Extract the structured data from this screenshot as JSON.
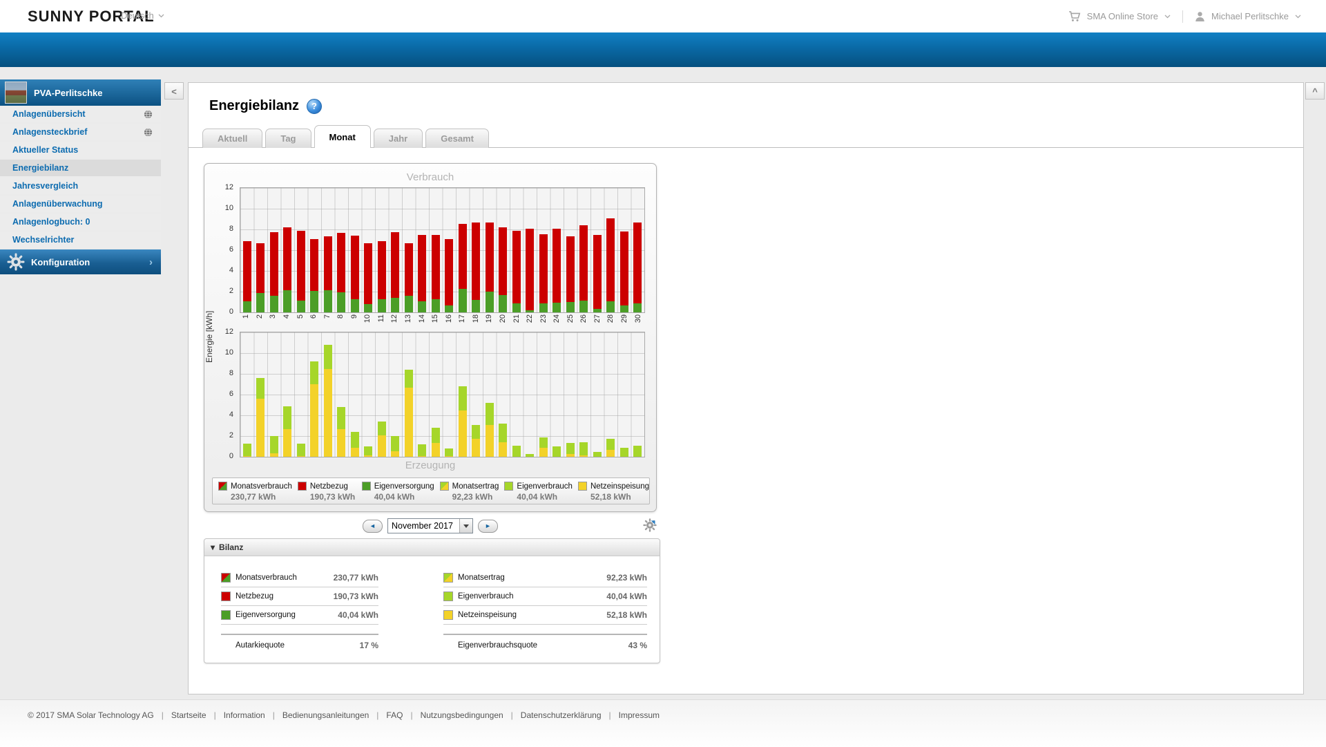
{
  "header": {
    "logo": "SUNNY PORTAL",
    "language": "Deutsch",
    "store_label": "SMA Online Store",
    "user_name": "Michael Perlitschke"
  },
  "sidebar": {
    "plant_name": "PVA-Perlitschke",
    "items": [
      {
        "label": "Anlagenübersicht",
        "globe": true
      },
      {
        "label": "Anlagensteckbrief",
        "globe": true
      },
      {
        "label": "Aktueller Status"
      },
      {
        "label": "Energiebilanz",
        "selected": true
      },
      {
        "label": "Jahresvergleich"
      },
      {
        "label": "Anlagenüberwachung"
      },
      {
        "label": "Anlagenlogbuch: 0"
      },
      {
        "label": "Wechselrichter"
      }
    ],
    "config_label": "Konfiguration"
  },
  "panel_controls": {
    "collapse_left": "<",
    "collapse_up": "^"
  },
  "page_title": "Energiebilanz",
  "help_glyph": "?",
  "tabs": [
    {
      "label": "Aktuell",
      "active": false
    },
    {
      "label": "Tag",
      "active": false
    },
    {
      "label": "Monat",
      "active": true
    },
    {
      "label": "Jahr",
      "active": false
    },
    {
      "label": "Gesamt",
      "active": false
    }
  ],
  "legend": [
    {
      "label": "Monatsverbrauch",
      "value": "230,77 kWh",
      "chip": "monatsverbrauch"
    },
    {
      "label": "Netzbezug",
      "value": "190,73 kWh",
      "chip": "netzbezug"
    },
    {
      "label": "Eigenversorgung",
      "value": "40,04 kWh",
      "chip": "eigenversorgung"
    },
    {
      "label": "Monatsertrag",
      "value": "92,23 kWh",
      "chip": "monatsertrag"
    },
    {
      "label": "Eigenverbrauch",
      "value": "40,04 kWh",
      "chip": "eigenverbrauch"
    },
    {
      "label": "Netzeinspeisung",
      "value": "52,18 kWh",
      "chip": "netzeinspeisung"
    }
  ],
  "date_nav": {
    "prev": "◄",
    "next": "►",
    "selected": "November 2017"
  },
  "bilanz": {
    "title": "Bilanz",
    "caret": "▾",
    "left_rows": [
      {
        "label": "Monatsverbrauch",
        "value": "230,77 kWh",
        "chip": "monatsverbrauch"
      },
      {
        "label": "Netzbezug",
        "value": "190,73 kWh",
        "chip": "netzbezug"
      },
      {
        "label": "Eigenversorgung",
        "value": "40,04 kWh",
        "chip": "eigenversorgung"
      }
    ],
    "left_quote": {
      "label": "Autarkiequote",
      "value": "17 %"
    },
    "right_rows": [
      {
        "label": "Monatsertrag",
        "value": "92,23 kWh",
        "chip": "monatsertrag"
      },
      {
        "label": "Eigenverbrauch",
        "value": "40,04 kWh",
        "chip": "eigenverbrauch"
      },
      {
        "label": "Netzeinspeisung",
        "value": "52,18 kWh",
        "chip": "netzeinspeisung"
      }
    ],
    "right_quote": {
      "label": "Eigenverbrauchsquote",
      "value": "43 %"
    }
  },
  "footer": {
    "copyright": "© 2017 SMA Solar Technology AG",
    "links": [
      "Startseite",
      "Information",
      "Bedienungsanleitungen",
      "FAQ",
      "Nutzungsbedingungen",
      "Datenschutzerklärung",
      "Impressum"
    ]
  },
  "colors": {
    "ribbon_top": "#1180c4",
    "ribbon_bottom": "#05507f",
    "sidebar_link": "#0d6cb0",
    "red": "#cc0000",
    "dark_green": "#4c9e27",
    "light_green": "#a6d62a",
    "yellow": "#f3d229"
  },
  "chart_data": [
    {
      "type": "bar",
      "stacked": true,
      "title": "Verbrauch",
      "ylabel": "Energie [kWh]",
      "ylim": [
        0,
        12
      ],
      "yticks": [
        12,
        10,
        8,
        6,
        4,
        2,
        0
      ],
      "grid": true,
      "x_labels": [
        "1",
        "2",
        "3",
        "4",
        "5",
        "6",
        "7",
        "8",
        "9",
        "10",
        "11",
        "12",
        "13",
        "14",
        "15",
        "16",
        "17",
        "18",
        "19",
        "20",
        "21",
        "22",
        "23",
        "24",
        "25",
        "26",
        "27",
        "28",
        "29",
        "30"
      ],
      "series": [
        {
          "name": "Eigenversorgung",
          "color": "#4c9e27",
          "values": [
            1.1,
            1.9,
            1.6,
            2.15,
            1.15,
            2.1,
            2.15,
            1.95,
            1.3,
            0.8,
            1.25,
            1.4,
            1.6,
            1.05,
            1.3,
            0.7,
            2.25,
            1.2,
            2.0,
            1.65,
            0.9,
            0.2,
            0.85,
            0.95,
            1.0,
            1.15,
            0.35,
            1.05,
            0.7,
            0.9
          ]
        },
        {
          "name": "Netzbezug",
          "color": "#cc0000",
          "values": [
            5.8,
            4.75,
            6.15,
            6.05,
            6.75,
            4.95,
            5.2,
            5.75,
            6.1,
            5.9,
            5.65,
            6.35,
            5.1,
            6.45,
            6.15,
            6.35,
            6.3,
            7.5,
            6.7,
            6.55,
            6.95,
            7.9,
            6.7,
            7.15,
            6.35,
            7.25,
            7.15,
            8.0,
            7.1,
            7.8
          ]
        }
      ]
    },
    {
      "type": "bar",
      "stacked": true,
      "title": "Erzeugung",
      "ylabel": "Energie [kWh]",
      "ylim": [
        0,
        12
      ],
      "yticks": [
        12,
        10,
        8,
        6,
        4,
        2,
        0
      ],
      "grid": true,
      "x_labels": [
        "1",
        "2",
        "3",
        "4",
        "5",
        "6",
        "7",
        "8",
        "9",
        "10",
        "11",
        "12",
        "13",
        "14",
        "15",
        "16",
        "17",
        "18",
        "19",
        "20",
        "21",
        "22",
        "23",
        "24",
        "25",
        "26",
        "27",
        "28",
        "29",
        "30"
      ],
      "series": [
        {
          "name": "Netzeinspeisung",
          "color": "#f3d229",
          "values": [
            0.05,
            5.6,
            0.35,
            2.65,
            0.05,
            7.0,
            8.5,
            2.7,
            0.85,
            0.15,
            2.05,
            0.55,
            6.65,
            0.05,
            1.35,
            0.05,
            4.45,
            1.75,
            3.05,
            1.4,
            0,
            0,
            0.9,
            0,
            0.25,
            0.15,
            0,
            0.65,
            0,
            0
          ]
        },
        {
          "name": "Eigenverbrauch",
          "color": "#a6d62a",
          "values": [
            1.25,
            2.0,
            1.65,
            2.25,
            1.25,
            2.2,
            2.3,
            2.1,
            1.55,
            0.85,
            1.35,
            1.45,
            1.75,
            1.15,
            1.45,
            0.75,
            2.35,
            1.3,
            2.15,
            1.8,
            1.05,
            0.25,
            1.0,
            1.0,
            1.1,
            1.25,
            0.45,
            1.1,
            0.85,
            1.05
          ]
        }
      ]
    }
  ]
}
